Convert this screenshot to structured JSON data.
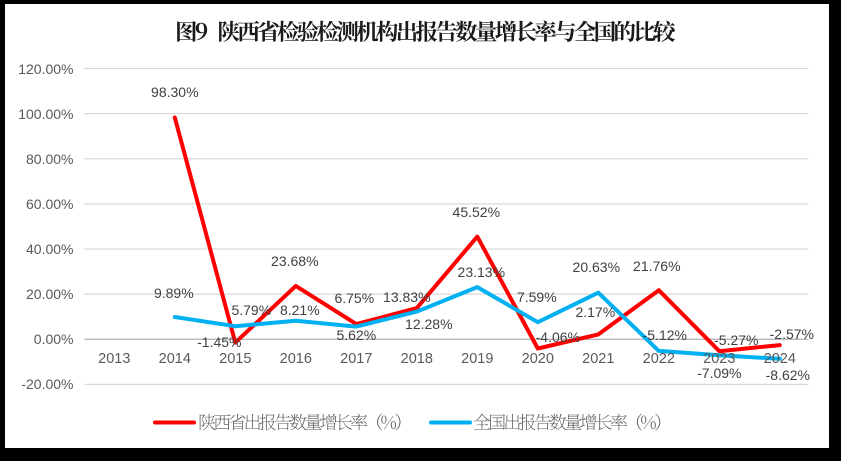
{
  "figure": {
    "frame_color": "#000000",
    "canvas_color": "#ffffff"
  },
  "chart_data": {
    "type": "line",
    "title": "图9 陕西省检验检测机构出报告数量增长率与全国的比较",
    "categories": [
      "2013",
      "2014",
      "2015",
      "2016",
      "2017",
      "2018",
      "2019",
      "2020",
      "2021",
      "2022",
      "2023",
      "2024"
    ],
    "series": [
      {
        "id": "shaanxi",
        "name": "陕西省出报告数量增长率（%）",
        "color": "#ff0000",
        "values": [
          null,
          98.3,
          -1.45,
          23.68,
          6.75,
          13.83,
          45.52,
          -4.06,
          2.17,
          21.76,
          -5.27,
          -2.57
        ],
        "labels": [
          "",
          "98.30%",
          "-1.45%",
          "23.68%",
          "6.75%",
          "13.83%",
          "45.52%",
          "-4.06%",
          "2.17%",
          "21.76%",
          "-5.27%",
          "-2.57%"
        ],
        "label_offsets": [
          null,
          [
            0,
            -25
          ],
          [
            -16,
            -1
          ],
          [
            -1,
            -25
          ],
          [
            -2,
            -26
          ],
          [
            -10,
            -11
          ],
          [
            -1,
            -25
          ],
          [
            20,
            -11
          ],
          [
            -3,
            -22
          ],
          [
            -2,
            -24
          ],
          [
            17,
            -11
          ],
          [
            12,
            -11
          ]
        ]
      },
      {
        "id": "national",
        "name": "全国出报告数量增长率（%）",
        "color": "#00b0f0",
        "values": [
          null,
          9.89,
          5.79,
          8.21,
          5.62,
          12.28,
          23.13,
          7.59,
          20.63,
          -5.12,
          -7.09,
          -8.62
        ],
        "labels": [
          "",
          "9.89%",
          "5.79%",
          "8.21%",
          "5.62%",
          "12.28%",
          "23.13%",
          "7.59%",
          "20.63%",
          "-5.12%",
          "-7.09%",
          "-8.62%"
        ],
        "label_offsets": [
          null,
          [
            -1,
            -24
          ],
          [
            16,
            -16
          ],
          [
            4,
            -11
          ],
          [
            0,
            8
          ],
          [
            12,
            12
          ],
          [
            4,
            -15
          ],
          [
            -1,
            -25
          ],
          [
            -2,
            -26
          ],
          [
            6,
            -16
          ],
          [
            0,
            18
          ],
          [
            8,
            16
          ]
        ]
      }
    ],
    "yaxis": {
      "min": -20,
      "max": 120,
      "step": 20,
      "tick_labels": [
        "120.00%",
        "100.00%",
        "80.00%",
        "60.00%",
        "40.00%",
        "20.00%",
        "0.00%",
        "-20.00%"
      ]
    },
    "grid": "on",
    "legend_position": "bottom",
    "axis_label_color": "#595959",
    "data_label_color": "#404040",
    "gridline_color": "#d9d9d9",
    "axis_line_color": "#b0b0b0",
    "title_color": "#1a1a1a"
  }
}
